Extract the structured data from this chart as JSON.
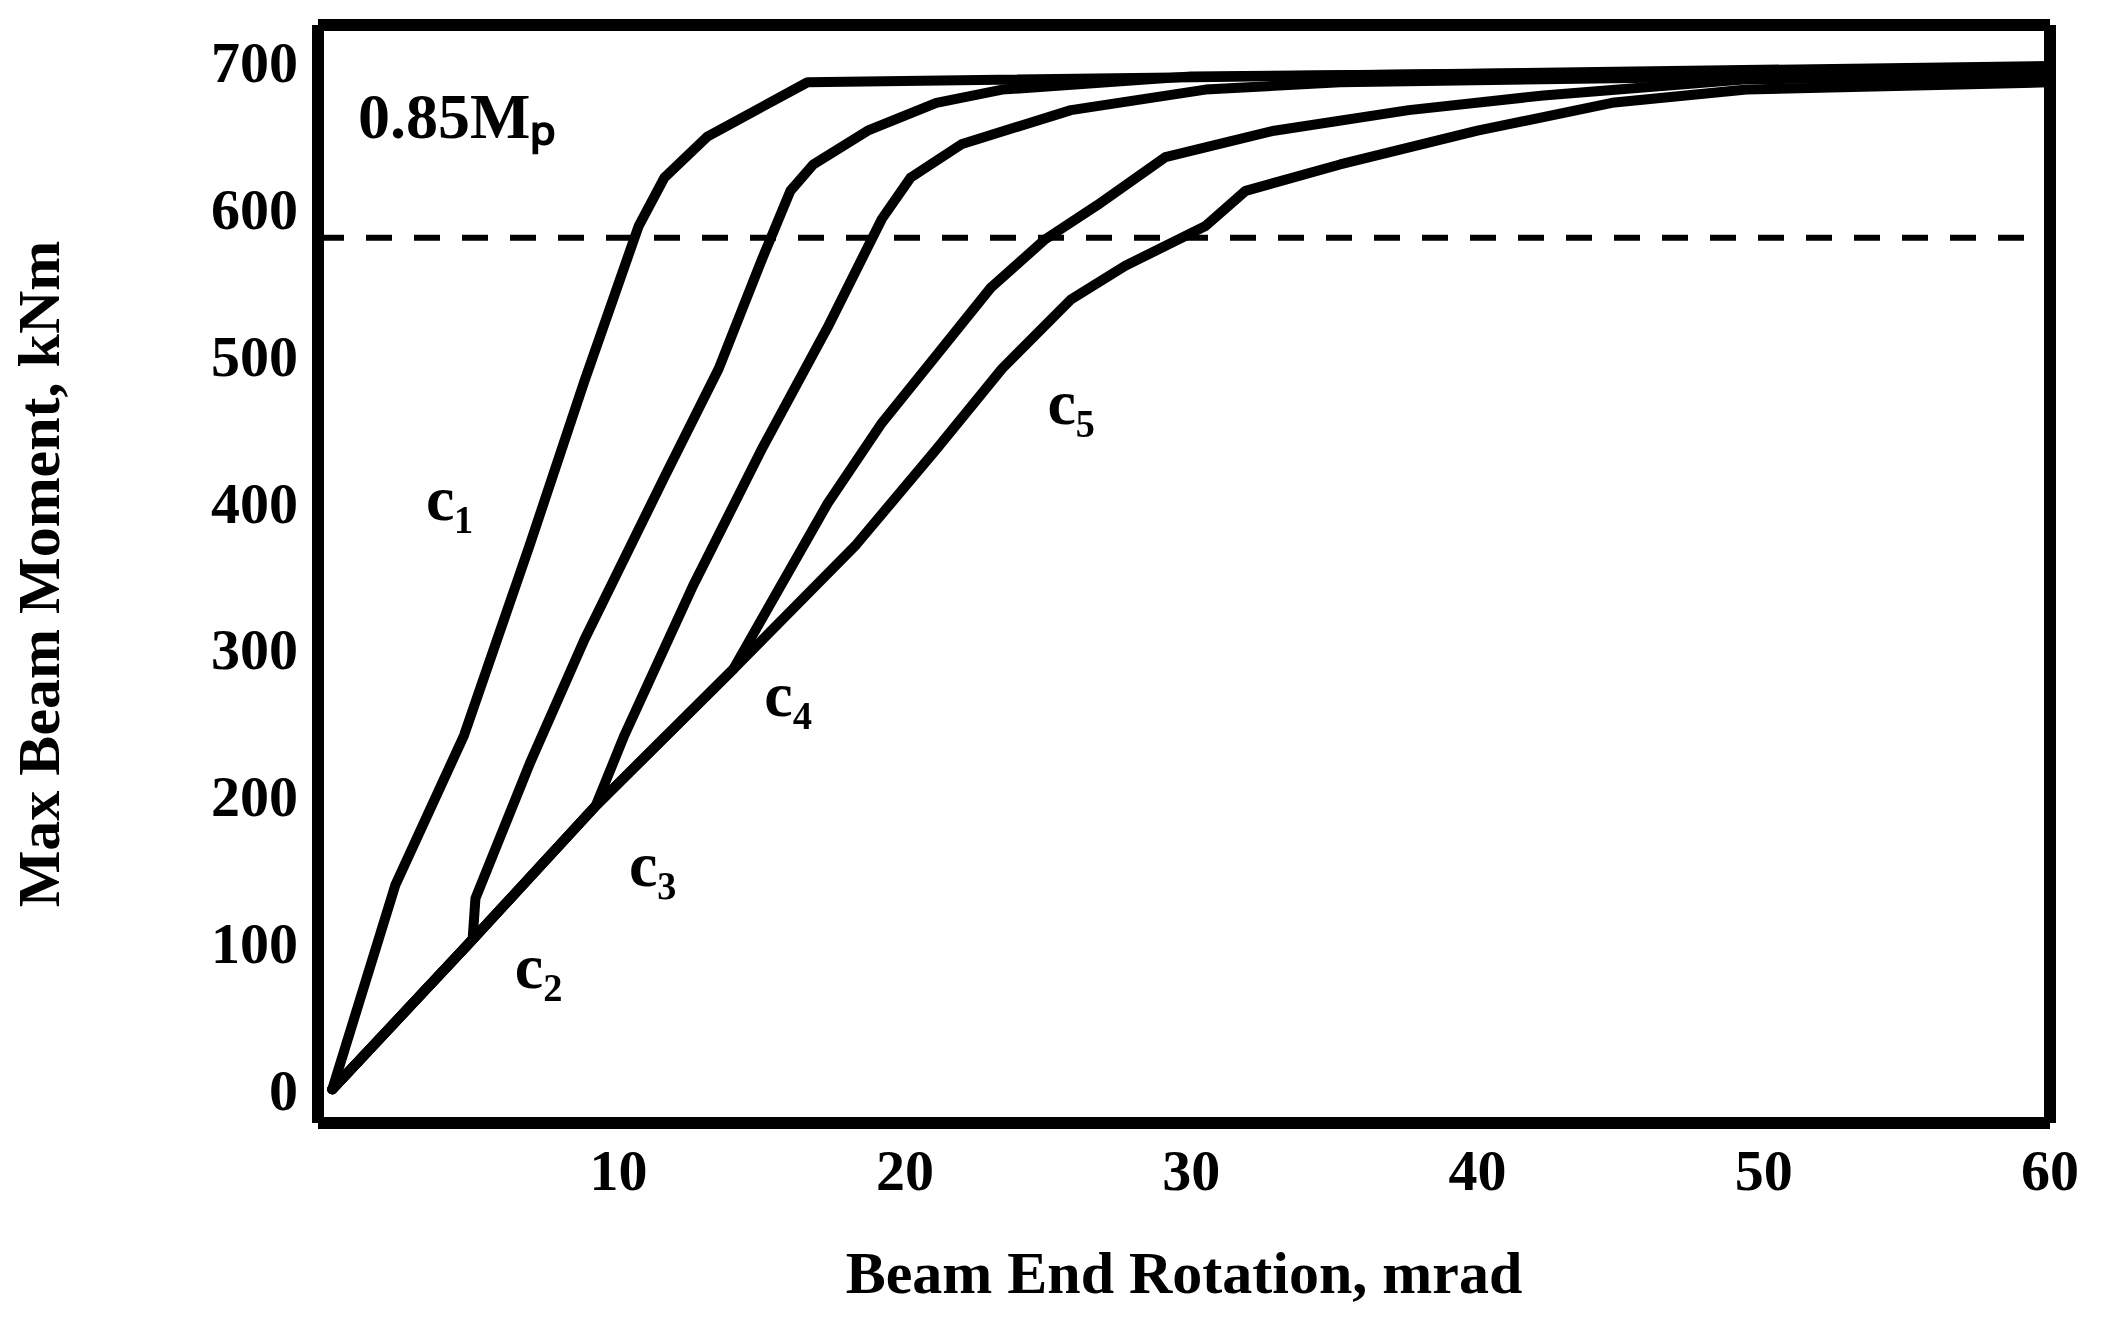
{
  "chart_data": {
    "type": "line",
    "xlabel": "Beam End Rotation, mrad",
    "ylabel": "Max Beam Moment, kNm",
    "xlim": [
      -0.5,
      60
    ],
    "xticks": [
      10,
      20,
      30,
      40,
      50,
      60
    ],
    "ylim": [
      -23,
      725
    ],
    "yticks": [
      0,
      100,
      200,
      300,
      400,
      500,
      600,
      700
    ],
    "grid": false,
    "legend": false,
    "marker": "none",
    "line_style": "solid",
    "series": [
      {
        "name": "c₁",
        "color": "#000000",
        "x": [
          0,
          2.2,
          4.6,
          6.9,
          8.8,
          10.7,
          11.6,
          13.1,
          16.6,
          60
        ],
        "values": [
          0,
          139,
          241,
          371,
          482,
          588,
          621,
          649,
          686,
          697
        ]
      },
      {
        "name": "c₂",
        "color": "#000000",
        "x": [
          0,
          4.9,
          5.0,
          6.9,
          8.8,
          11.6,
          13.5,
          15,
          16,
          16.8,
          18.7,
          21.1,
          23.4,
          30,
          60
        ],
        "values": [
          0,
          102,
          130,
          222,
          306,
          417,
          491,
          565,
          612,
          630,
          653,
          672,
          681,
          690,
          695
        ]
      },
      {
        "name": "c₃",
        "color": "#000000",
        "x": [
          0,
          4.9,
          9.2,
          10.2,
          12.6,
          15,
          17.3,
          19.2,
          20.2,
          22,
          25.8,
          30.5,
          35.2,
          60
        ],
        "values": [
          0,
          102,
          193,
          241,
          343,
          436,
          519,
          593,
          621,
          644,
          667,
          681,
          686,
          693
        ]
      },
      {
        "name": "c₄",
        "color": "#000000",
        "x": [
          0,
          4.9,
          9.2,
          14,
          15.4,
          17.3,
          19.2,
          21.1,
          23,
          24.9,
          26.7,
          29.1,
          32.9,
          37.6,
          42.3,
          49.4,
          60
        ],
        "values": [
          0,
          102,
          193,
          286,
          334,
          399,
          454,
          500,
          546,
          579,
          602,
          635,
          653,
          667,
          677,
          688,
          690
        ]
      },
      {
        "name": "c₅",
        "color": "#000000",
        "x": [
          0,
          4.9,
          9.2,
          14,
          18.3,
          21.1,
          23.4,
          25.8,
          27.7,
          30.5,
          31.9,
          35.2,
          40,
          44.7,
          49.4,
          60
        ],
        "values": [
          0,
          102,
          193,
          286,
          371,
          436,
          491,
          538,
          561,
          588,
          612,
          630,
          653,
          672,
          681,
          686
        ]
      }
    ],
    "ref_lines": [
      {
        "axis": "y",
        "value": 580,
        "line_style": "dashed",
        "color": "#000000",
        "label": "0.85Mₚ"
      }
    ]
  }
}
